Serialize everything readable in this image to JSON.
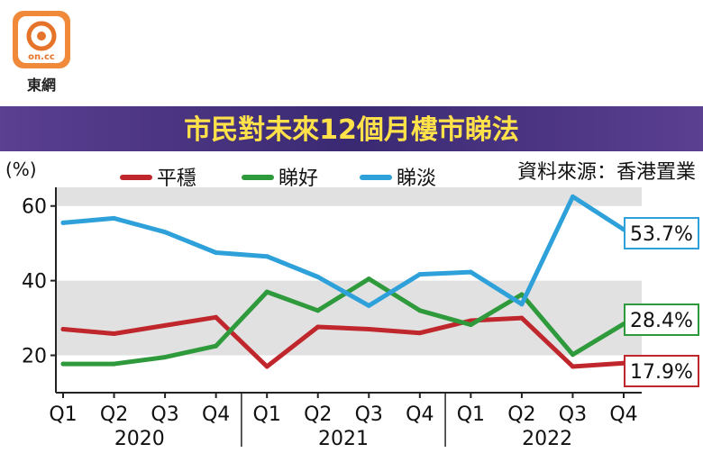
{
  "brand": {
    "logo_text": "on.cc",
    "name": "東網"
  },
  "banner": {
    "title": "市民對未來12個月樓市睇法"
  },
  "source_label": "資料來源：香港置業",
  "chart_data": {
    "type": "line",
    "title": "市民對未來12個月樓市睇法",
    "ylabel": "(%)",
    "ylim": [
      10,
      65
    ],
    "yticks": [
      20,
      40,
      60
    ],
    "grid_bands": [
      [
        20,
        40
      ],
      [
        60,
        65
      ]
    ],
    "categories": [
      "Q1",
      "Q2",
      "Q3",
      "Q4",
      "Q1",
      "Q2",
      "Q3",
      "Q4",
      "Q1",
      "Q2",
      "Q3",
      "Q4"
    ],
    "years": [
      {
        "label": "2020",
        "from": 0,
        "to": 3
      },
      {
        "label": "2021",
        "from": 4,
        "to": 7
      },
      {
        "label": "2022",
        "from": 8,
        "to": 11
      }
    ],
    "legend_position": "top",
    "series": [
      {
        "name": "平穩",
        "color": "#c0272d",
        "end_label": "17.9%",
        "values": [
          27,
          25.8,
          28,
          30.2,
          17,
          27.6,
          27,
          26,
          29.3,
          30,
          17,
          17.9
        ]
      },
      {
        "name": "睇好",
        "color": "#2e9a3c",
        "end_label": "28.4%",
        "values": [
          17.7,
          17.7,
          19.5,
          22.5,
          37,
          32,
          40.5,
          32,
          28.2,
          36.3,
          20.2,
          28.4
        ]
      },
      {
        "name": "睇淡",
        "color": "#2ea1da",
        "end_label": "53.7%",
        "values": [
          55.5,
          56.7,
          53,
          47.5,
          46.5,
          41,
          33.3,
          41.7,
          42.3,
          33.7,
          62.5,
          53.7
        ]
      }
    ]
  }
}
